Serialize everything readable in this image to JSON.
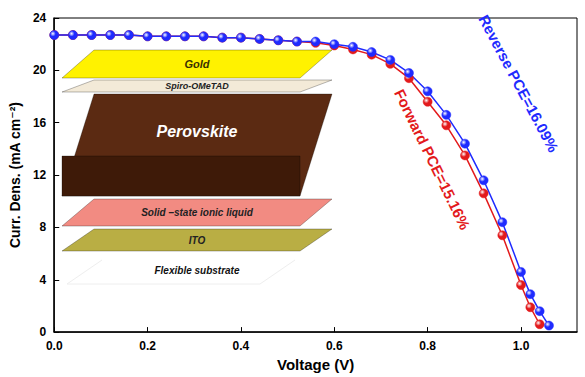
{
  "chart_data": {
    "type": "line",
    "x_label": "Voltage (V)",
    "y_label": "Curr. Dens. (mA cm⁻²)",
    "xlim": [
      0,
      1.12
    ],
    "xticks": [
      {
        "value": 0,
        "label": "0.0"
      },
      0.2,
      0.4,
      0.6,
      0.8,
      {
        "value": 1,
        "label": "1.0"
      }
    ],
    "ylim": [
      0,
      24
    ],
    "yticks": [
      0,
      4,
      8,
      12,
      16,
      20,
      24
    ],
    "marker": "circle",
    "series": [
      {
        "color": "#e31a1c",
        "x": [
          0,
          0.04,
          0.08,
          0.12,
          0.16,
          0.2,
          0.24,
          0.28,
          0.32,
          0.36,
          0.4,
          0.44,
          0.48,
          0.52,
          0.56,
          0.6,
          0.64,
          0.68,
          0.72,
          0.76,
          0.8,
          0.84,
          0.88,
          0.92,
          0.96,
          1.0,
          1.02,
          1.04
        ],
        "values": [
          22.7,
          22.7,
          22.7,
          22.7,
          22.7,
          22.6,
          22.6,
          22.6,
          22.6,
          22.5,
          22.5,
          22.4,
          22.3,
          22.2,
          22.1,
          21.9,
          21.6,
          21.2,
          20.5,
          19.4,
          17.6,
          15.8,
          13.5,
          10.6,
          7.4,
          3.6,
          1.9,
          0.6
        ]
      },
      {
        "color": "#1f2bff",
        "x": [
          0,
          0.04,
          0.08,
          0.12,
          0.16,
          0.2,
          0.24,
          0.28,
          0.32,
          0.36,
          0.4,
          0.44,
          0.48,
          0.52,
          0.56,
          0.6,
          0.64,
          0.68,
          0.72,
          0.76,
          0.8,
          0.84,
          0.88,
          0.92,
          0.96,
          1.0,
          1.02,
          1.04,
          1.06
        ],
        "values": [
          22.7,
          22.7,
          22.7,
          22.7,
          22.7,
          22.6,
          22.6,
          22.6,
          22.6,
          22.5,
          22.5,
          22.4,
          22.3,
          22.2,
          22.2,
          22.0,
          21.8,
          21.4,
          20.8,
          19.8,
          18.4,
          16.6,
          14.4,
          11.6,
          8.4,
          4.6,
          2.9,
          1.6,
          0.5
        ]
      }
    ],
    "annotations": [
      {
        "text": "Forward PCE=15.16%",
        "x": 0.81,
        "y": 13.2,
        "color": "#e31a1c"
      },
      {
        "text": "Reverse PCE=16.09%",
        "x": 0.995,
        "y": 19.0,
        "color": "#1f2bff"
      }
    ],
    "inset": {
      "layers": [
        "Gold",
        "Spiro-OMeTAD",
        "Perovskite",
        "Solid –state ionic liquid",
        "ITO",
        "Flexible substrate"
      ]
    }
  }
}
